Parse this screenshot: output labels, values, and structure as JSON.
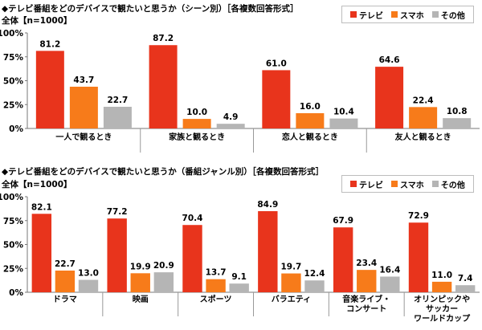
{
  "colors": {
    "tv": "#e8341c",
    "smartphone": "#f77b1a",
    "other": "#b5b5b5"
  },
  "legend": [
    {
      "key": "tv",
      "label": "テレビ"
    },
    {
      "key": "smartphone",
      "label": "スマホ"
    },
    {
      "key": "other",
      "label": "その他"
    }
  ],
  "chart1": {
    "title": "◆テレビ番組をどのデバイスで観たいと思うか（シーン別）［各複数回答形式］",
    "subtitle": "全体【n=1000】"
  },
  "chart2": {
    "title": "◆テレビ番組をどのデバイスで観たいと思うか（番組ジャンル別）［各複数回答形式］",
    "subtitle": "全体【n=1000】"
  },
  "chart_data": [
    {
      "type": "bar",
      "title": "◆テレビ番組をどのデバイスで観たいと思うか（シーン別）［各複数回答形式］",
      "subtitle": "全体【n=1000】",
      "categories": [
        "一人で観るとき",
        "家族と観るとき",
        "恋人と観るとき",
        "友人と観るとき"
      ],
      "series": [
        {
          "name": "テレビ",
          "values": [
            81.2,
            87.2,
            61.0,
            64.6
          ]
        },
        {
          "name": "スマホ",
          "values": [
            43.7,
            10.0,
            16.0,
            22.4
          ]
        },
        {
          "name": "その他",
          "values": [
            22.7,
            4.9,
            10.4,
            10.8
          ]
        }
      ],
      "yticks": [
        "0%",
        "25%",
        "50%",
        "75%",
        "100%"
      ],
      "ylim": [
        0,
        100
      ],
      "grid": false,
      "legend_position": "top-right"
    },
    {
      "type": "bar",
      "title": "◆テレビ番組をどのデバイスで観たいと思うか（番組ジャンル別）［各複数回答形式］",
      "subtitle": "全体【n=1000】",
      "categories": [
        "ドラマ",
        "映画",
        "スポーツ",
        "バラエティ",
        "音楽ライブ・\nコンサート",
        "オリンピックや\nサッカー\nワールドカップ"
      ],
      "series": [
        {
          "name": "テレビ",
          "values": [
            82.1,
            77.2,
            70.4,
            84.9,
            67.9,
            72.9
          ]
        },
        {
          "name": "スマホ",
          "values": [
            22.7,
            19.9,
            13.7,
            19.7,
            23.4,
            11.0
          ]
        },
        {
          "name": "その他",
          "values": [
            13.0,
            20.9,
            9.1,
            12.4,
            16.4,
            7.4
          ]
        }
      ],
      "yticks": [
        "0%",
        "25%",
        "50%",
        "75%",
        "100%"
      ],
      "ylim": [
        0,
        100
      ],
      "grid": false,
      "legend_position": "top-right"
    }
  ]
}
